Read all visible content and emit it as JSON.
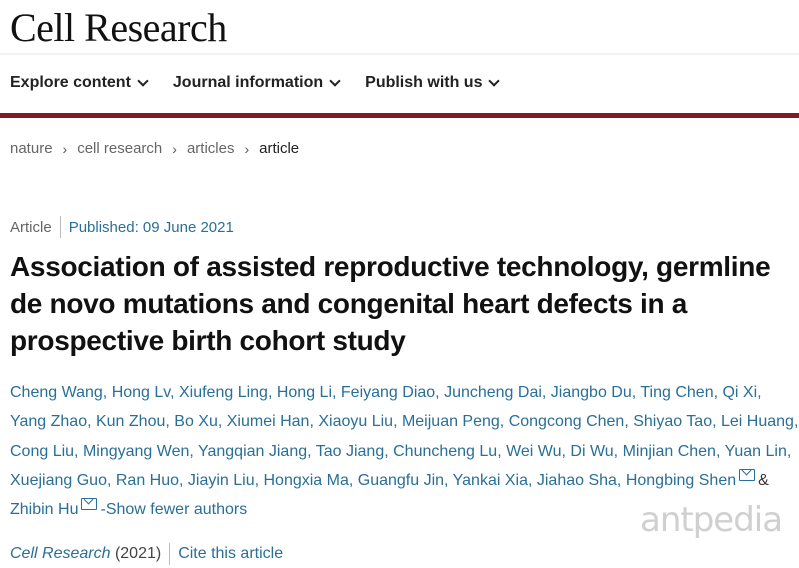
{
  "header": {
    "logo": "Cell Research"
  },
  "nav": {
    "items": [
      {
        "label": "Explore content"
      },
      {
        "label": "Journal information"
      },
      {
        "label": "Publish with us"
      }
    ]
  },
  "colors": {
    "accent_bar": "#7b1c28",
    "link": "#2a6f97"
  },
  "breadcrumb": [
    "nature",
    "cell research",
    "articles",
    "article"
  ],
  "article": {
    "type": "Article",
    "published": "Published: 09 June 2021",
    "title": "Association of assisted reproductive technology, germline de novo mutations and congenital heart defects in a prospective birth cohort study",
    "authors": [
      "Cheng Wang",
      "Hong Lv",
      "Xiufeng Ling",
      "Hong Li",
      "Feiyang Diao",
      "Juncheng Dai",
      "Jiangbo Du",
      "Ting Chen",
      "Qi Xi",
      "Yang Zhao",
      "Kun Zhou",
      "Bo Xu",
      "Xiumei Han",
      "Xiaoyu Liu",
      "Meijuan Peng",
      "Congcong Chen",
      "Shiyao Tao",
      "Lei Huang",
      "Cong Liu",
      "Mingyang Wen",
      "Yangqian Jiang",
      "Tao Jiang",
      "Chuncheng Lu",
      "Wei Wu",
      "Di Wu",
      "Minjian Chen",
      "Yuan Lin",
      "Xuejiang Guo",
      "Ran Huo",
      "Jiayin Liu",
      "Hongxia Ma",
      "Guangfu Jin",
      "Yankai Xia",
      "Jiahao Sha"
    ],
    "corresponding_authors": [
      "Hongbing Shen",
      "Zhibin Hu"
    ],
    "and": "&",
    "show_fewer": "-Show fewer authors",
    "journal": "Cell Research",
    "year": "(2021)",
    "cite": "Cite this article"
  },
  "watermark": "antpedia"
}
